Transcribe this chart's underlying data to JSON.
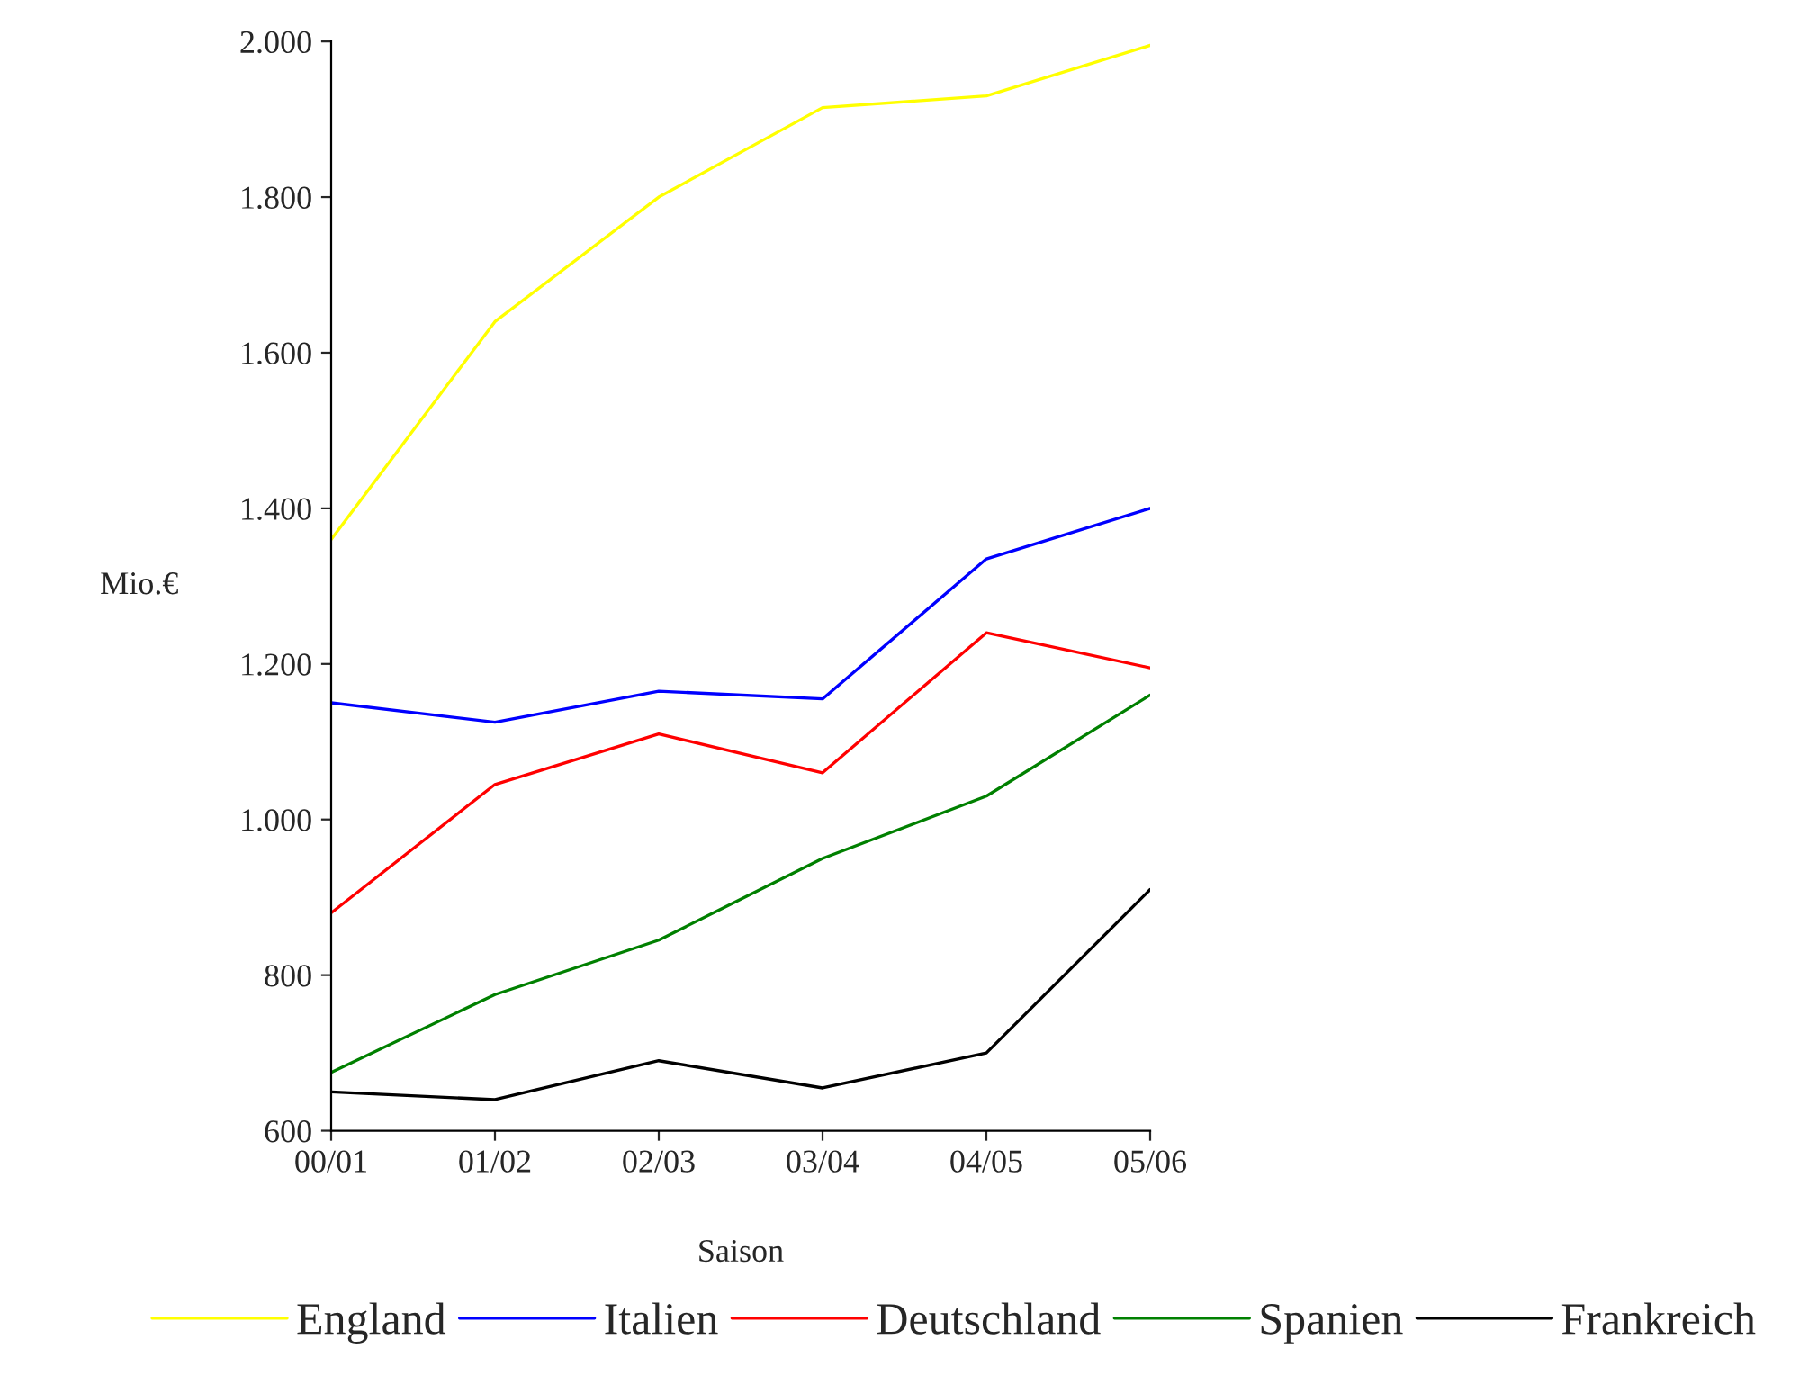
{
  "chart_data": {
    "type": "line",
    "categories": [
      "00/01",
      "01/02",
      "02/03",
      "03/04",
      "04/05",
      "05/06"
    ],
    "xlabel": "Saison",
    "ylabel": "Mio.€",
    "ylim": [
      600,
      2000
    ],
    "yticks": [
      {
        "value": 600,
        "label": "600"
      },
      {
        "value": 800,
        "label": "800"
      },
      {
        "value": 1000,
        "label": "1.000"
      },
      {
        "value": 1200,
        "label": "1.200"
      },
      {
        "value": 1400,
        "label": "1.400"
      },
      {
        "value": 1600,
        "label": "1.600"
      },
      {
        "value": 1800,
        "label": "1.800"
      },
      {
        "value": 2000,
        "label": "2.000"
      }
    ],
    "grid": false,
    "legend": "bottom",
    "marker": "none",
    "line_style": "solid",
    "series": [
      {
        "name": "England",
        "color": "#ffff00",
        "values": [
          1360,
          1640,
          1800,
          1915,
          1930,
          1995
        ]
      },
      {
        "name": "Italien",
        "color": "#0000ff",
        "values": [
          1150,
          1125,
          1165,
          1155,
          1335,
          1400
        ]
      },
      {
        "name": "Deutschland",
        "color": "#ff0000",
        "values": [
          880,
          1045,
          1110,
          1060,
          1240,
          1195
        ]
      },
      {
        "name": "Spanien",
        "color": "#008000",
        "values": [
          675,
          775,
          845,
          950,
          1030,
          1160
        ]
      },
      {
        "name": "Frankreich",
        "color": "#000000",
        "values": [
          650,
          640,
          690,
          655,
          700,
          910
        ]
      }
    ]
  }
}
